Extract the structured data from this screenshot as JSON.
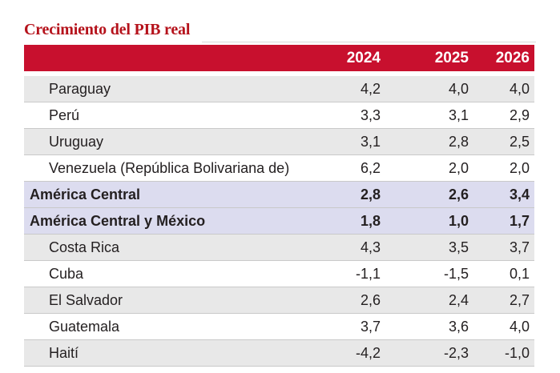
{
  "title": "Crecimiento del PIB real",
  "columns": [
    "2024",
    "2025",
    "2026"
  ],
  "rows": [
    {
      "label": "Paraguay",
      "v2024": "4,2",
      "v2025": "4,0",
      "v2026": "4,0",
      "kind": "shade"
    },
    {
      "label": "Perú",
      "v2024": "3,3",
      "v2025": "3,1",
      "v2026": "2,9",
      "kind": "plain"
    },
    {
      "label": "Uruguay",
      "v2024": "3,1",
      "v2025": "2,8",
      "v2026": "2,5",
      "kind": "shade"
    },
    {
      "label": "Venezuela (República Bolivariana de)",
      "v2024": "6,2",
      "v2025": "2,0",
      "v2026": "2,0",
      "kind": "plain"
    },
    {
      "label": "América Central",
      "v2024": "2,8",
      "v2025": "2,6",
      "v2026": "3,4",
      "kind": "group"
    },
    {
      "label": "América Central y México",
      "v2024": "1,8",
      "v2025": "1,0",
      "v2026": "1,7",
      "kind": "group"
    },
    {
      "label": "Costa Rica",
      "v2024": "4,3",
      "v2025": "3,5",
      "v2026": "3,7",
      "kind": "shade"
    },
    {
      "label": "Cuba",
      "v2024": "-1,1",
      "v2025": "-1,5",
      "v2026": "0,1",
      "kind": "plain"
    },
    {
      "label": "El Salvador",
      "v2024": "2,6",
      "v2025": "2,4",
      "v2026": "2,7",
      "kind": "shade"
    },
    {
      "label": "Guatemala",
      "v2024": "3,7",
      "v2025": "3,6",
      "v2026": "4,0",
      "kind": "plain"
    },
    {
      "label": "Haití",
      "v2024": "-4,2",
      "v2025": "-2,3",
      "v2026": "-1,0",
      "kind": "shade"
    }
  ],
  "colors": {
    "title": "#b5121b",
    "header_bg": "#c8102e",
    "shade_row": "#e8e8e8",
    "group_row": "#dcdcef"
  }
}
